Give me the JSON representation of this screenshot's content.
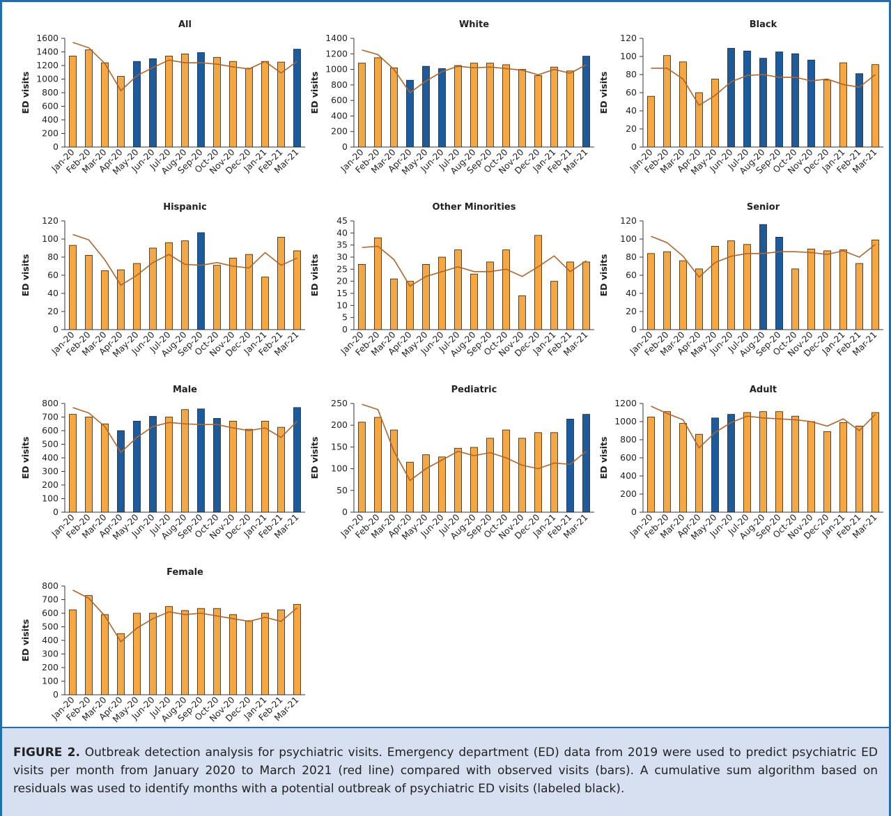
{
  "chart_data": [
    {
      "type": "bar",
      "title": "All",
      "y_label": "ED visits",
      "categories": [
        "Jan-20",
        "Feb-20",
        "Mar-20",
        "Apr-20",
        "May-20",
        "Jun-20",
        "Jul-20",
        "Aug-20",
        "Sep-20",
        "Oct-20",
        "Nov-20",
        "Dec-20",
        "Jan-21",
        "Feb-21",
        "Mar-21"
      ],
      "values": [
        1340,
        1430,
        1240,
        1040,
        1260,
        1300,
        1340,
        1370,
        1390,
        1320,
        1260,
        1160,
        1260,
        1250,
        1440
      ],
      "colors": [
        "#f5a742",
        "#f5a742",
        "#f5a742",
        "#f5a742",
        "#1c5c9e",
        "#1c5c9e",
        "#f5a742",
        "#f5a742",
        "#1c5c9e",
        "#f5a742",
        "#f5a742",
        "#f5a742",
        "#f5a742",
        "#f5a742",
        "#1c5c9e"
      ],
      "line_values": [
        1540,
        1460,
        1230,
        830,
        1050,
        1170,
        1280,
        1240,
        1240,
        1220,
        1180,
        1150,
        1260,
        1090,
        1260
      ],
      "line_color": "#b0642c",
      "ylim": [
        0,
        1600
      ],
      "yticks": [
        0,
        200,
        400,
        600,
        800,
        1000,
        1200,
        1400,
        1600
      ]
    },
    {
      "type": "bar",
      "title": "White",
      "y_label": "ED visits",
      "categories": [
        "Jan-20",
        "Feb-20",
        "Mar-20",
        "Apr-20",
        "May-20",
        "Jun-20",
        "Jul-20",
        "Aug-20",
        "Sep-20",
        "Oct-20",
        "Nov-20",
        "Dec-20",
        "Jan-21",
        "Feb-21",
        "Mar-21"
      ],
      "values": [
        1080,
        1150,
        1020,
        860,
        1040,
        1010,
        1050,
        1080,
        1080,
        1060,
        1000,
        920,
        1030,
        980,
        1170
      ],
      "colors": [
        "#f5a742",
        "#f5a742",
        "#f5a742",
        "#1c5c9e",
        "#1c5c9e",
        "#1c5c9e",
        "#f5a742",
        "#f5a742",
        "#f5a742",
        "#f5a742",
        "#f5a742",
        "#f5a742",
        "#f5a742",
        "#f5a742",
        "#1c5c9e"
      ],
      "line_values": [
        1250,
        1190,
        1000,
        700,
        850,
        970,
        1040,
        1020,
        1030,
        1010,
        990,
        930,
        1000,
        950,
        1060
      ],
      "line_color": "#b0642c",
      "ylim": [
        0,
        1400
      ],
      "yticks": [
        0,
        200,
        400,
        600,
        800,
        1000,
        1200,
        1400
      ]
    },
    {
      "type": "bar",
      "title": "Black",
      "y_label": "ED visits",
      "categories": [
        "Jan-20",
        "Feb-20",
        "Mar-20",
        "Apr-20",
        "May-20",
        "Jun-20",
        "Jul-20",
        "Aug-20",
        "Sep-20",
        "Oct-20",
        "Nov-20",
        "Dec-20",
        "Jan-21",
        "Feb-21",
        "Mar-21"
      ],
      "values": [
        56,
        101,
        94,
        60,
        75,
        109,
        106,
        98,
        105,
        103,
        96,
        74,
        93,
        81,
        91
      ],
      "colors": [
        "#f5a742",
        "#f5a742",
        "#f5a742",
        "#f5a742",
        "#f5a742",
        "#1c5c9e",
        "#1c5c9e",
        "#1c5c9e",
        "#1c5c9e",
        "#1c5c9e",
        "#1c5c9e",
        "#f5a742",
        "#f5a742",
        "#1c5c9e",
        "#f5a742"
      ],
      "line_values": [
        87,
        87,
        75,
        46,
        57,
        72,
        79,
        80,
        77,
        77,
        73,
        75,
        69,
        66,
        80
      ],
      "line_color": "#b0642c",
      "ylim": [
        0,
        120
      ],
      "yticks": [
        0,
        20,
        40,
        60,
        80,
        100,
        120
      ]
    },
    {
      "type": "bar",
      "title": "Hispanic",
      "y_label": "ED visits",
      "categories": [
        "Jan-20",
        "Feb-20",
        "Mar-20",
        "Apr-20",
        "May-20",
        "Jun-20",
        "Jul-20",
        "Aug-20",
        "Sep-20",
        "Oct-20",
        "Nov-20",
        "Dec-20",
        "Jan-21",
        "Feb-21",
        "Mar-21"
      ],
      "values": [
        93,
        82,
        65,
        66,
        73,
        90,
        96,
        98,
        107,
        71,
        79,
        83,
        58,
        102,
        87
      ],
      "colors": [
        "#f5a742",
        "#f5a742",
        "#f5a742",
        "#f5a742",
        "#f5a742",
        "#f5a742",
        "#f5a742",
        "#f5a742",
        "#1c5c9e",
        "#f5a742",
        "#f5a742",
        "#f5a742",
        "#f5a742",
        "#f5a742",
        "#f5a742"
      ],
      "line_values": [
        105,
        99,
        77,
        49,
        60,
        74,
        83,
        72,
        71,
        74,
        70,
        68,
        85,
        71,
        79
      ],
      "line_color": "#b0642c",
      "ylim": [
        0,
        120
      ],
      "yticks": [
        0,
        20,
        40,
        60,
        80,
        100,
        120
      ]
    },
    {
      "type": "bar",
      "title": "Other Minorities",
      "y_label": "ED visits",
      "categories": [
        "Jan-20",
        "Feb-20",
        "Mar-20",
        "Apr-20",
        "May-20",
        "Jun-20",
        "Jul-20",
        "Aug-20",
        "Sep-20",
        "Oct-20",
        "Nov-20",
        "Dec-20",
        "Jan-21",
        "Feb-21",
        "Mar-21"
      ],
      "values": [
        27,
        38,
        21,
        20,
        27,
        30,
        33,
        23,
        28,
        33,
        14,
        39,
        20,
        28,
        28
      ],
      "colors": [
        "#f5a742",
        "#f5a742",
        "#f5a742",
        "#f5a742",
        "#f5a742",
        "#f5a742",
        "#f5a742",
        "#f5a742",
        "#f5a742",
        "#f5a742",
        "#f5a742",
        "#f5a742",
        "#f5a742",
        "#f5a742",
        "#f5a742"
      ],
      "line_values": [
        34,
        34.5,
        29,
        18,
        22,
        24,
        26,
        24,
        24,
        25,
        22,
        26,
        30.5,
        24,
        28.5
      ],
      "line_color": "#b0642c",
      "ylim": [
        0,
        45
      ],
      "yticks": [
        0,
        5,
        10,
        15,
        20,
        25,
        30,
        35,
        40,
        45
      ]
    },
    {
      "type": "bar",
      "title": "Senior",
      "y_label": "ED visits",
      "categories": [
        "Jan-20",
        "Feb-20",
        "Mar-20",
        "Apr-20",
        "May-20",
        "Jun-20",
        "Jul-20",
        "Aug-20",
        "Sep-20",
        "Oct-20",
        "Nov-20",
        "Dec-20",
        "Jan-21",
        "Feb-21",
        "Mar-21"
      ],
      "values": [
        84,
        86,
        76,
        67,
        92,
        98,
        94,
        116,
        102,
        67,
        89,
        87,
        88,
        73,
        99
      ],
      "colors": [
        "#f5a742",
        "#f5a742",
        "#f5a742",
        "#f5a742",
        "#f5a742",
        "#f5a742",
        "#f5a742",
        "#1c5c9e",
        "#1c5c9e",
        "#f5a742",
        "#f5a742",
        "#f5a742",
        "#f5a742",
        "#f5a742",
        "#f5a742"
      ],
      "line_values": [
        103,
        96,
        81,
        58,
        74,
        81,
        84,
        84,
        86,
        86,
        85,
        83,
        87,
        80,
        94
      ],
      "line_color": "#b0642c",
      "ylim": [
        0,
        120
      ],
      "yticks": [
        0,
        20,
        40,
        60,
        80,
        100,
        120
      ]
    },
    {
      "type": "bar",
      "title": "Male",
      "y_label": "ED visits",
      "categories": [
        "Jan-20",
        "Feb-20",
        "Mar-20",
        "Apr-20",
        "May-20",
        "Jun-20",
        "Jul-20",
        "Aug-20",
        "Sep-20",
        "Oct-20",
        "Nov-20",
        "Dec-20",
        "Jan-21",
        "Feb-21",
        "Mar-21"
      ],
      "values": [
        720,
        700,
        650,
        600,
        670,
        705,
        700,
        755,
        760,
        690,
        670,
        610,
        670,
        625,
        770
      ],
      "colors": [
        "#f5a742",
        "#f5a742",
        "#f5a742",
        "#1c5c9e",
        "#1c5c9e",
        "#1c5c9e",
        "#f5a742",
        "#f5a742",
        "#1c5c9e",
        "#1c5c9e",
        "#f5a742",
        "#f5a742",
        "#f5a742",
        "#f5a742",
        "#1c5c9e"
      ],
      "line_values": [
        770,
        730,
        630,
        440,
        550,
        630,
        660,
        650,
        645,
        645,
        620,
        600,
        620,
        550,
        670
      ],
      "line_color": "#b0642c",
      "ylim": [
        0,
        800
      ],
      "yticks": [
        0,
        100,
        200,
        300,
        400,
        500,
        600,
        700,
        800
      ]
    },
    {
      "type": "bar",
      "title": "Pediatric",
      "y_label": "ED visits",
      "categories": [
        "Jan-20",
        "Feb-20",
        "Mar-20",
        "Apr-20",
        "May-20",
        "Jun-20",
        "Jul-20",
        "Aug-20",
        "Sep-20",
        "Oct-20",
        "Nov-20",
        "Dec-20",
        "Jan-21",
        "Feb-21",
        "Mar-21"
      ],
      "values": [
        207,
        218,
        189,
        115,
        132,
        127,
        147,
        149,
        170,
        189,
        170,
        183,
        183,
        214,
        225
      ],
      "colors": [
        "#f5a742",
        "#f5a742",
        "#f5a742",
        "#f5a742",
        "#f5a742",
        "#f5a742",
        "#f5a742",
        "#f5a742",
        "#f5a742",
        "#f5a742",
        "#f5a742",
        "#f5a742",
        "#f5a742",
        "#1c5c9e",
        "#1c5c9e"
      ],
      "line_values": [
        248,
        236,
        140,
        73,
        100,
        120,
        140,
        130,
        137,
        125,
        108,
        100,
        113,
        110,
        140
      ],
      "line_color": "#b0642c",
      "ylim": [
        0,
        250
      ],
      "yticks": [
        0,
        50,
        100,
        150,
        200,
        250
      ]
    },
    {
      "type": "bar",
      "title": "Adult",
      "y_label": "ED visits",
      "categories": [
        "Jan-20",
        "Feb-20",
        "Mar-20",
        "Apr-20",
        "May-20",
        "Jun-20",
        "Jul-20",
        "Aug-20",
        "Sep-20",
        "Oct-20",
        "Nov-20",
        "Dec-20",
        "Jan-21",
        "Feb-21",
        "Mar-21"
      ],
      "values": [
        1050,
        1110,
        980,
        860,
        1040,
        1080,
        1100,
        1110,
        1110,
        1060,
        1000,
        890,
        990,
        950,
        1100
      ],
      "colors": [
        "#f5a742",
        "#f5a742",
        "#f5a742",
        "#f5a742",
        "#1c5c9e",
        "#1c5c9e",
        "#f5a742",
        "#f5a742",
        "#f5a742",
        "#f5a742",
        "#f5a742",
        "#f5a742",
        "#f5a742",
        "#f5a742",
        "#f5a742"
      ],
      "line_values": [
        1170,
        1090,
        1020,
        710,
        880,
        990,
        1060,
        1040,
        1030,
        1020,
        1000,
        950,
        1030,
        900,
        1080
      ],
      "line_color": "#b0642c",
      "ylim": [
        0,
        1200
      ],
      "yticks": [
        0,
        200,
        400,
        600,
        800,
        1000,
        1200
      ]
    },
    {
      "type": "bar",
      "title": "Female",
      "y_label": "ED visits",
      "categories": [
        "Jan-20",
        "Feb-20",
        "Mar-20",
        "Apr-20",
        "May-20",
        "Jun-20",
        "Jul-20",
        "Aug-20",
        "Sep-20",
        "Oct-20",
        "Nov-20",
        "Dec-20",
        "Jan-21",
        "Feb-21",
        "Mar-21"
      ],
      "values": [
        625,
        730,
        590,
        450,
        600,
        600,
        650,
        620,
        635,
        635,
        590,
        545,
        600,
        625,
        665
      ],
      "colors": [
        "#f5a742",
        "#f5a742",
        "#f5a742",
        "#f5a742",
        "#f5a742",
        "#f5a742",
        "#f5a742",
        "#f5a742",
        "#f5a742",
        "#f5a742",
        "#f5a742",
        "#f5a742",
        "#f5a742",
        "#f5a742",
        "#f5a742"
      ],
      "line_values": [
        770,
        710,
        580,
        390,
        490,
        560,
        610,
        590,
        600,
        580,
        560,
        540,
        570,
        540,
        640
      ],
      "line_color": "#b0642c",
      "ylim": [
        0,
        800
      ],
      "yticks": [
        0,
        100,
        200,
        300,
        400,
        500,
        600,
        700,
        800
      ]
    }
  ],
  "caption": {
    "label": "FIGURE 2.",
    "text": "Outbreak detection analysis for psychiatric visits. Emergency department (ED) data from 2019 were used to predict psychiatric ED visits per month from January 2020 to March 2021 (red line) compared with observed visits (bars). A cumulative sum algorithm based on residuals was used to identify months with a potential outbreak of psychiatric ED visits (labeled black)."
  }
}
